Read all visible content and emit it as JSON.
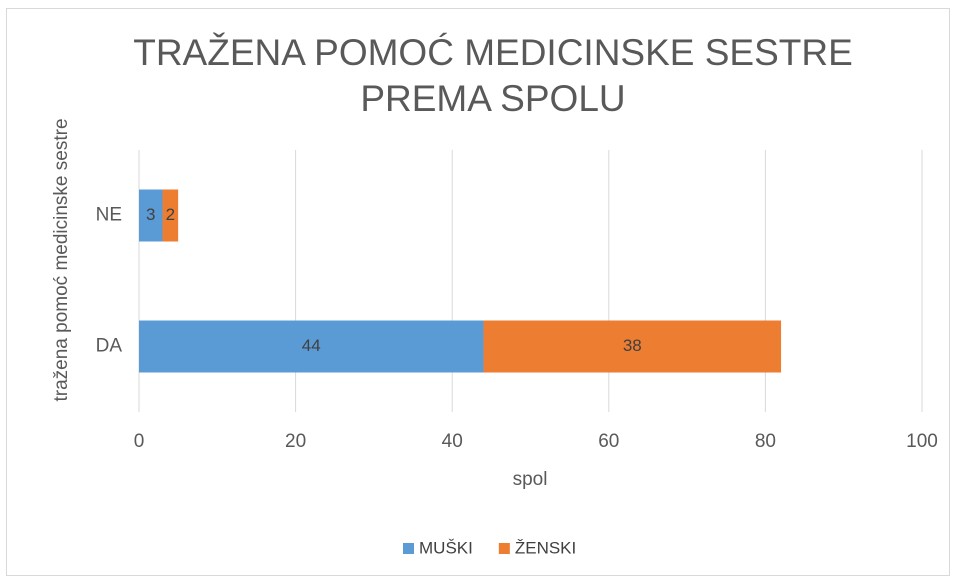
{
  "chart_data": {
    "type": "bar",
    "orientation": "horizontal",
    "stacked": true,
    "title": "TRAŽENA POMOĆ MEDICINSKE  SESTRE PREMA SPOLU",
    "x_label": "spol",
    "y_label": "tražena pomoć medicinske sestre",
    "categories": [
      "DA",
      "NE"
    ],
    "series": [
      {
        "name": "MUŠKI",
        "color": "#5b9bd5",
        "values": [
          44,
          3
        ]
      },
      {
        "name": "ŽENSKI",
        "color": "#ed7d31",
        "values": [
          38,
          2
        ]
      }
    ],
    "xlim": [
      0,
      100
    ],
    "xticks": [
      0,
      20,
      40,
      60,
      80,
      100
    ],
    "grid": true,
    "legend": "bottom"
  }
}
